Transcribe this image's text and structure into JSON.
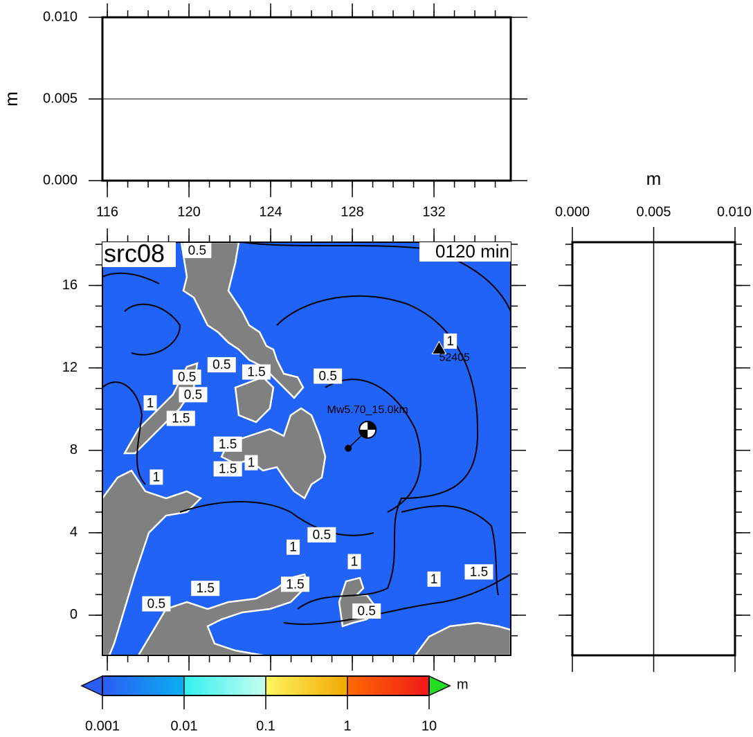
{
  "chart_data": [
    {
      "type": "map",
      "title": "src08",
      "time_label": "0120 min",
      "xlim": [
        115.76,
        135.76
      ],
      "ylim": [
        -1.95,
        18.1
      ],
      "xticks": [
        116,
        120,
        124,
        128,
        132
      ],
      "xminor": [
        116,
        117,
        118,
        119,
        120,
        121,
        122,
        123,
        124,
        125,
        126,
        127,
        128,
        129,
        130,
        131,
        132,
        133,
        134,
        135
      ],
      "yticks": [
        0,
        4,
        8,
        12,
        16
      ],
      "yminor": [
        -1,
        0,
        1,
        2,
        3,
        4,
        5,
        6,
        7,
        8,
        9,
        10,
        11,
        12,
        13,
        14,
        15,
        16,
        17,
        18
      ],
      "ocean_color": "#2162f7",
      "land_color": "#808080",
      "station": {
        "name": "52405",
        "lon": 132.25,
        "lat": 12.95
      },
      "epicenter": {
        "label": "Mw5.70_15.0km",
        "lon": 127.8,
        "lat": 8.1,
        "beachball_lon": 128.75,
        "beachball_lat": 9.0
      },
      "contour_labels": [
        {
          "label": "0.5",
          "lon": 120.4,
          "lat": 17.7
        },
        {
          "label": "1",
          "lon": 132.8,
          "lat": 13.3
        },
        {
          "label": "0.5",
          "lon": 126.8,
          "lat": 11.6
        },
        {
          "label": "0.5",
          "lon": 121.6,
          "lat": 12.15
        },
        {
          "label": "1.5",
          "lon": 123.3,
          "lat": 11.8
        },
        {
          "label": "0.5",
          "lon": 119.9,
          "lat": 11.55
        },
        {
          "label": "0.5",
          "lon": 120.2,
          "lat": 10.7
        },
        {
          "label": "1",
          "lon": 118.1,
          "lat": 10.3
        },
        {
          "label": "1.5",
          "lon": 119.6,
          "lat": 9.55
        },
        {
          "label": "1.5",
          "lon": 121.9,
          "lat": 8.3
        },
        {
          "label": "1",
          "lon": 123.05,
          "lat": 7.4
        },
        {
          "label": "1.5",
          "lon": 121.9,
          "lat": 7.1
        },
        {
          "label": "1",
          "lon": 118.4,
          "lat": 6.7
        },
        {
          "label": "0.5",
          "lon": 126.5,
          "lat": 3.9
        },
        {
          "label": "1",
          "lon": 125.1,
          "lat": 3.3
        },
        {
          "label": "1",
          "lon": 128.1,
          "lat": 2.6
        },
        {
          "label": "1.5",
          "lon": 125.2,
          "lat": 1.5
        },
        {
          "label": "1",
          "lon": 132.0,
          "lat": 1.75
        },
        {
          "label": "1.5",
          "lon": 134.2,
          "lat": 2.1
        },
        {
          "label": "1.5",
          "lon": 120.8,
          "lat": 1.3
        },
        {
          "label": "0.5",
          "lon": 118.4,
          "lat": 0.55
        },
        {
          "label": "0.5",
          "lon": 128.7,
          "lat": 0.2
        }
      ],
      "colorbar": {
        "ticks": [
          0.001,
          0.01,
          0.1,
          1,
          10
        ],
        "colors": [
          [
            "#2c5cf6",
            "#08b0f0"
          ],
          [
            "#30f0f0",
            "#c8fff0"
          ],
          [
            "#fff560",
            "#f0a800"
          ],
          [
            "#ff6a00",
            "#f01818"
          ]
        ],
        "under_color": "#2c5cf6",
        "over_color": "#22dd22",
        "unit": "m"
      }
    },
    {
      "type": "profile",
      "orient": "horizontal",
      "ylabel": "m",
      "ylim": [
        0,
        0.01
      ],
      "yticks": [
        {
          "value": 0,
          "label": "0.000"
        },
        {
          "value": 0.005,
          "label": "0.005"
        },
        {
          "value": 0.01,
          "label": "0.010"
        }
      ],
      "ref_line": 0.005
    },
    {
      "type": "profile",
      "orient": "vertical",
      "xlabel": "m",
      "xlim": [
        0,
        0.01
      ],
      "xticks": [
        {
          "value": 0,
          "label": "0.000"
        },
        {
          "value": 0.005,
          "label": "0.005"
        },
        {
          "value": 0.01,
          "label": "0.010"
        }
      ],
      "ref_line": 0.005
    }
  ]
}
